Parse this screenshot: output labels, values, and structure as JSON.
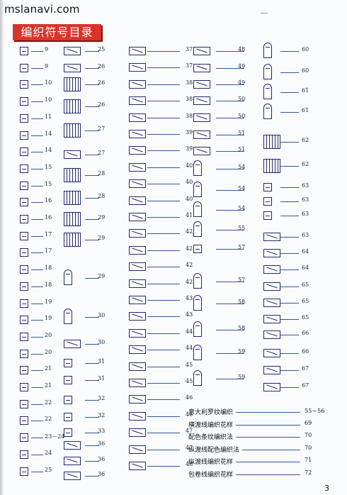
{
  "site": "mslanavi.com",
  "title": "编织符号目录",
  "page_number": "3",
  "columns": [
    {
      "entries": [
        {
          "n": "9",
          "kind": "box"
        },
        {
          "n": "9",
          "kind": "box"
        },
        {
          "n": "10",
          "kind": "box"
        },
        {
          "n": "10",
          "kind": "box"
        },
        {
          "n": "11",
          "kind": "box"
        },
        {
          "n": "14",
          "kind": "box"
        },
        {
          "n": "14",
          "kind": "box"
        },
        {
          "n": "15",
          "kind": "box"
        },
        {
          "n": "15",
          "kind": "box"
        },
        {
          "n": "16",
          "kind": "box"
        },
        {
          "n": "16",
          "kind": "box"
        },
        {
          "n": "17",
          "kind": "box"
        },
        {
          "n": "17",
          "kind": "box"
        },
        {
          "n": "18",
          "kind": "box"
        },
        {
          "n": "18",
          "kind": "box"
        },
        {
          "n": "19",
          "kind": "box"
        },
        {
          "n": "19",
          "kind": "box"
        },
        {
          "n": "20",
          "kind": "box"
        },
        {
          "n": "20",
          "kind": "box"
        },
        {
          "n": "21",
          "kind": "box"
        },
        {
          "n": "21",
          "kind": "box"
        },
        {
          "n": "22",
          "kind": "box"
        },
        {
          "n": "22",
          "kind": "box"
        },
        {
          "n": "23－24",
          "kind": "box"
        },
        {
          "n": "24",
          "kind": "box"
        },
        {
          "n": "25",
          "kind": "box"
        }
      ]
    },
    {
      "entries": [
        {
          "n": "25",
          "kind": "wide"
        },
        {
          "n": "26",
          "kind": "wide"
        },
        {
          "n": "26",
          "kind": "grid"
        },
        {
          "n": "26",
          "kind": "grid"
        },
        {
          "n": "27",
          "kind": "grid"
        },
        {
          "n": "27",
          "kind": "wide"
        },
        {
          "n": "28",
          "kind": "grid"
        },
        {
          "n": "28",
          "kind": "grid"
        },
        {
          "n": "29",
          "kind": "grid"
        },
        {
          "n": "29",
          "kind": "grid"
        },
        {
          "n": "29",
          "kind": "arch"
        },
        {
          "n": "30",
          "kind": "arch"
        },
        {
          "n": "30",
          "kind": "wide"
        },
        {
          "n": "31",
          "kind": "box"
        },
        {
          "n": "31",
          "kind": "box"
        },
        {
          "n": "32",
          "kind": "box"
        },
        {
          "n": "32",
          "kind": "box"
        },
        {
          "n": "33",
          "kind": "box"
        },
        {
          "n": "36",
          "kind": "wide"
        },
        {
          "n": "36",
          "kind": "wide"
        },
        {
          "n": "36",
          "kind": "wide"
        }
      ]
    },
    {
      "entries": [
        {
          "n": "37",
          "kind": "wide"
        },
        {
          "n": "37",
          "kind": "wide"
        },
        {
          "n": "38",
          "kind": "wide"
        },
        {
          "n": "38",
          "kind": "wide"
        },
        {
          "n": "38",
          "kind": "wide"
        },
        {
          "n": "39",
          "kind": "wide"
        },
        {
          "n": "39",
          "kind": "wide"
        },
        {
          "n": "40",
          "kind": "wide"
        },
        {
          "n": "40",
          "kind": "wide"
        },
        {
          "n": "40",
          "kind": "wide"
        },
        {
          "n": "41",
          "kind": "wide"
        },
        {
          "n": "42",
          "kind": "wide"
        },
        {
          "n": "42",
          "kind": "wide"
        },
        {
          "n": "42",
          "kind": "wide"
        },
        {
          "n": "42",
          "kind": "wide"
        },
        {
          "n": "43",
          "kind": "wide"
        },
        {
          "n": "43",
          "kind": "wide"
        },
        {
          "n": "44",
          "kind": "wide"
        },
        {
          "n": "44",
          "kind": "wide"
        },
        {
          "n": "45",
          "kind": "wide"
        },
        {
          "n": "45",
          "kind": "wide"
        },
        {
          "n": "46",
          "kind": "wide"
        },
        {
          "n": "46",
          "kind": "wide"
        },
        {
          "n": "47",
          "kind": "wide"
        },
        {
          "n": "47",
          "kind": "wide"
        },
        {
          "n": "48",
          "kind": "wide"
        }
      ]
    },
    {
      "entries": [
        {
          "n": "48",
          "kind": "wide"
        },
        {
          "n": "49",
          "kind": "wide"
        },
        {
          "n": "49",
          "kind": "wide"
        },
        {
          "n": "50",
          "kind": "wide"
        },
        {
          "n": "50",
          "kind": "wide"
        },
        {
          "n": "51",
          "kind": "wide"
        },
        {
          "n": "51",
          "kind": "wide"
        },
        {
          "n": "54",
          "kind": "arch"
        },
        {
          "n": "54",
          "kind": "arch"
        },
        {
          "n": "54",
          "kind": "arch"
        },
        {
          "n": "55",
          "kind": "arch"
        },
        {
          "n": "57",
          "kind": "box"
        },
        {
          "n": "57",
          "kind": "arch"
        },
        {
          "n": "58",
          "kind": "arch"
        },
        {
          "n": "58",
          "kind": "arch"
        },
        {
          "n": "59",
          "kind": "arch"
        },
        {
          "n": "59",
          "kind": "arch"
        }
      ]
    },
    {
      "entries": [
        {
          "n": "60",
          "kind": "arch"
        },
        {
          "n": "60",
          "kind": "arch"
        },
        {
          "n": "61",
          "kind": "arch"
        },
        {
          "n": "61",
          "kind": "arch"
        },
        {
          "n": "62",
          "kind": "grid"
        },
        {
          "n": "62",
          "kind": "grid"
        },
        {
          "n": "63",
          "kind": "box"
        },
        {
          "n": "63",
          "kind": "box"
        },
        {
          "n": "63",
          "kind": "box"
        },
        {
          "n": "63",
          "kind": "wide"
        },
        {
          "n": "64",
          "kind": "wide"
        },
        {
          "n": "64",
          "kind": "wide"
        },
        {
          "n": "65",
          "kind": "wide"
        },
        {
          "n": "65",
          "kind": "wide"
        },
        {
          "n": "65",
          "kind": "wide"
        },
        {
          "n": "66",
          "kind": "wide"
        },
        {
          "n": "66",
          "kind": "wide"
        },
        {
          "n": "67",
          "kind": "wide"
        },
        {
          "n": "67",
          "kind": "wide"
        }
      ]
    }
  ],
  "legend": [
    {
      "label": "意大利罗纹编织",
      "pages": "55－56"
    },
    {
      "label": "横渡线编织花样",
      "pages": "69"
    },
    {
      "label": "配色条纹编织法",
      "pages": "70"
    },
    {
      "label": "纵渡线配色编织法",
      "pages": "70"
    },
    {
      "label": "纵渡线编织花样",
      "pages": "71"
    },
    {
      "label": "包卷线编织花样",
      "pages": "72"
    }
  ]
}
